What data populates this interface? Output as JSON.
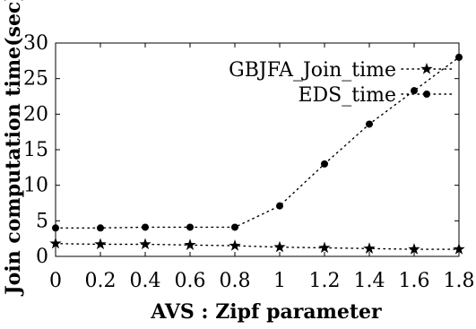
{
  "chart_data": {
    "type": "line",
    "title": "",
    "xlabel": "AVS : Zipf parameter",
    "ylabel": "Join computation time(sec)",
    "x": [
      0,
      0.2,
      0.4,
      0.6,
      0.8,
      1.0,
      1.2,
      1.4,
      1.6,
      1.8
    ],
    "x_tick_labels": [
      "0",
      "0.2",
      "0.4",
      "0.6",
      "0.8",
      "1",
      "1.2",
      "1.4",
      "1.6",
      "1.8"
    ],
    "y_ticks": [
      0,
      5,
      10,
      15,
      20,
      25,
      30
    ],
    "xlim": [
      0,
      1.8
    ],
    "ylim": [
      0,
      30
    ],
    "grid": false,
    "legend_position": "top-right",
    "series": [
      {
        "name": "GBJFA_Join_time",
        "marker": "star",
        "line_style": "dotted",
        "color": "#000000",
        "values": [
          1.8,
          1.7,
          1.7,
          1.6,
          1.5,
          1.3,
          1.2,
          1.1,
          1.0,
          1.0
        ]
      },
      {
        "name": "EDS_time",
        "marker": "circle",
        "line_style": "dotted",
        "color": "#000000",
        "values": [
          4.0,
          4.0,
          4.1,
          4.1,
          4.1,
          7.1,
          13.0,
          18.6,
          23.3,
          28.0
        ]
      }
    ]
  }
}
